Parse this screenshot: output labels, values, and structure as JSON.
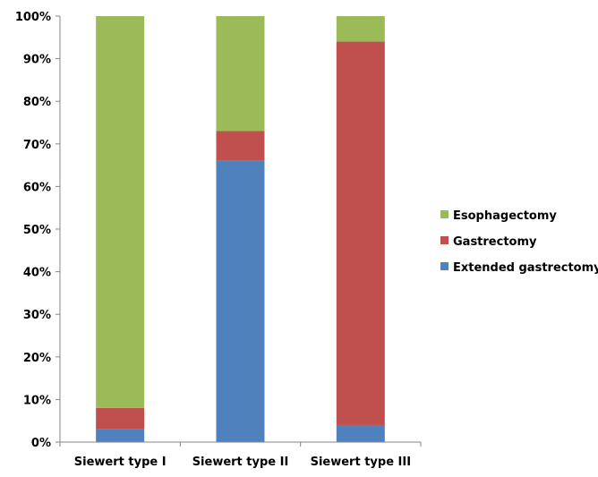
{
  "chart_data": {
    "type": "bar",
    "stacked": true,
    "percent": true,
    "categories": [
      "Siewert type I",
      "Siewert type II",
      "Siewert type III"
    ],
    "series": [
      {
        "name": "Extended gastrectomy",
        "color": "#4f81bd",
        "values": [
          3,
          66,
          4
        ]
      },
      {
        "name": "Gastrectomy",
        "color": "#c0504d",
        "values": [
          5,
          7,
          90
        ]
      },
      {
        "name": "Esophagectomy",
        "color": "#9bbb59",
        "values": [
          92,
          27,
          6
        ]
      }
    ],
    "ylim": [
      0,
      100
    ],
    "yticks": [
      "0%",
      "10%",
      "20%",
      "30%",
      "40%",
      "50%",
      "60%",
      "70%",
      "80%",
      "90%",
      "100%"
    ],
    "legend_position": "right",
    "legend_order": [
      "Esophagectomy",
      "Gastrectomy",
      "Extended gastrectomy"
    ],
    "grid": false
  }
}
